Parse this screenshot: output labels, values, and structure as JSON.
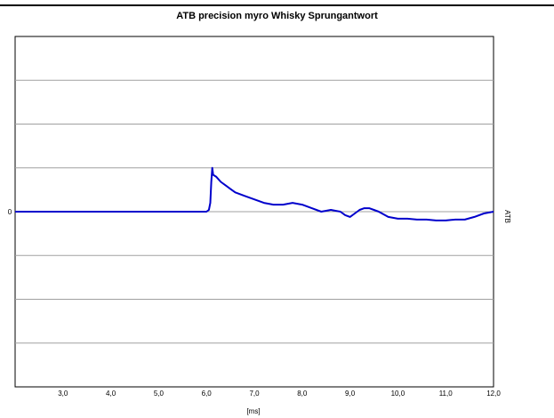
{
  "chart_data": {
    "type": "line",
    "title": "ATB precision myro Whisky Sprungantwort",
    "xlabel": "[ms]",
    "ylabel_right": "ATB",
    "xlim": [
      2.0,
      12.0
    ],
    "ylim": [
      -1.0,
      1.0
    ],
    "x_ticks": [
      "3,0",
      "4,0",
      "5,0",
      "6,0",
      "7,0",
      "8,0",
      "9,0",
      "10,0",
      "11,0",
      "12,0"
    ],
    "x_tick_values": [
      3,
      4,
      5,
      6,
      7,
      8,
      9,
      10,
      11,
      12
    ],
    "y_ticks": [
      "0"
    ],
    "y_tick_values": [
      0
    ],
    "grid": true,
    "series_color": "#0000cc",
    "series": [
      {
        "x": [
          2.0,
          2.5,
          3.0,
          3.5,
          4.0,
          4.5,
          5.0,
          5.5,
          6.0,
          6.05,
          6.08,
          6.1,
          6.12,
          6.14,
          6.2,
          6.3,
          6.4,
          6.5,
          6.6,
          6.8,
          7.0,
          7.2,
          7.4,
          7.6,
          7.8,
          8.0,
          8.2,
          8.4,
          8.6,
          8.8,
          8.9,
          9.0,
          9.1,
          9.2,
          9.3,
          9.4,
          9.5,
          9.6,
          9.8,
          10.0,
          10.2,
          10.4,
          10.6,
          10.8,
          11.0,
          11.2,
          11.4,
          11.6,
          11.8,
          12.0
        ],
        "y": [
          0.0,
          0.0,
          0.0,
          0.0,
          0.0,
          0.0,
          0.0,
          0.0,
          0.0,
          0.01,
          0.05,
          0.17,
          0.25,
          0.21,
          0.2,
          0.17,
          0.15,
          0.13,
          0.11,
          0.09,
          0.07,
          0.05,
          0.04,
          0.04,
          0.05,
          0.04,
          0.02,
          0.0,
          0.01,
          0.0,
          -0.02,
          -0.03,
          -0.01,
          0.01,
          0.02,
          0.02,
          0.01,
          0.0,
          -0.03,
          -0.04,
          -0.04,
          -0.045,
          -0.045,
          -0.05,
          -0.05,
          -0.045,
          -0.045,
          -0.03,
          -0.01,
          0.0
        ]
      }
    ]
  }
}
